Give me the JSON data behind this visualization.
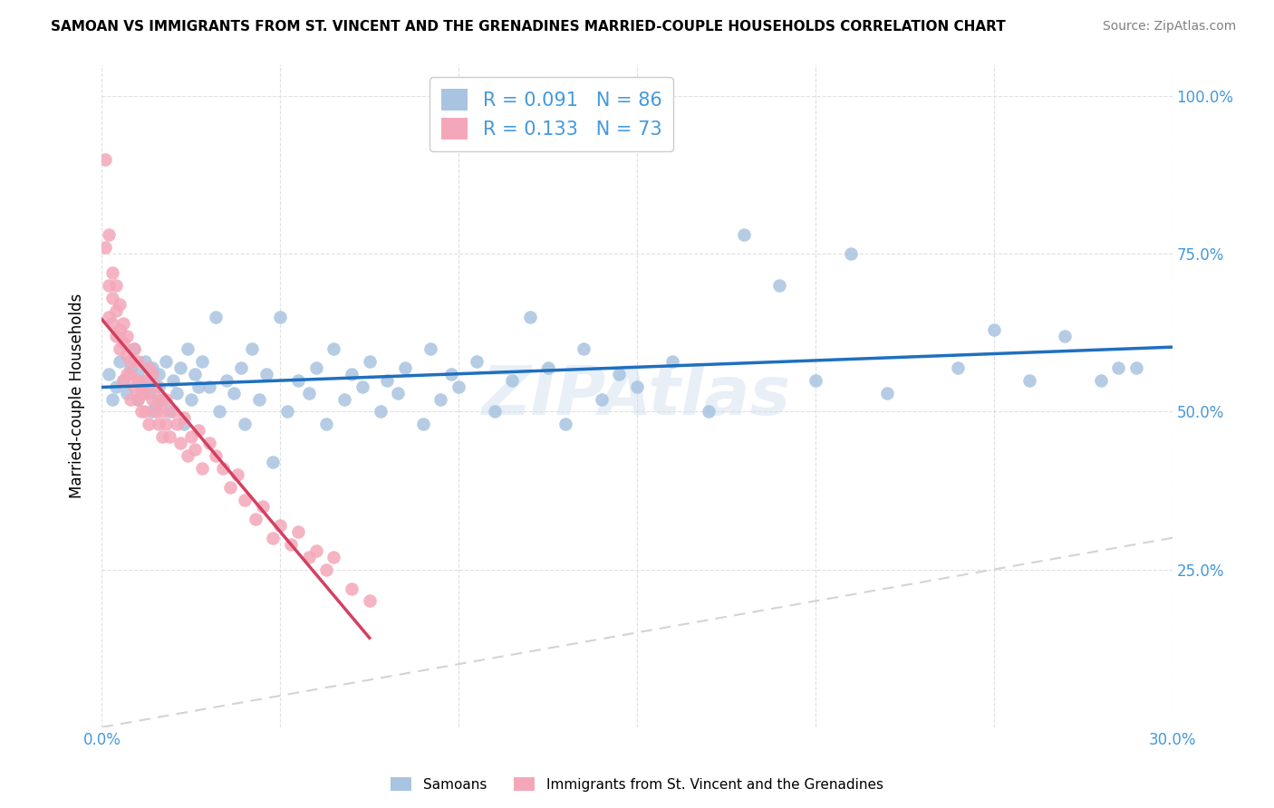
{
  "title": "SAMOAN VS IMMIGRANTS FROM ST. VINCENT AND THE GRENADINES MARRIED-COUPLE HOUSEHOLDS CORRELATION CHART",
  "source": "Source: ZipAtlas.com",
  "ylabel": "Married-couple Households",
  "x_min": 0.0,
  "x_max": 0.3,
  "y_min": 0.0,
  "y_max": 1.05,
  "samoans_R": 0.091,
  "samoans_N": 86,
  "svg_R": 0.133,
  "svg_N": 73,
  "samoans_color": "#a8c4e0",
  "svg_color": "#f4a7b9",
  "samoans_line_color": "#1f6fbf",
  "svg_line_color": "#d44060",
  "diagonal_color": "#cccccc",
  "background_color": "#ffffff",
  "grid_color": "#dddddd",
  "legend_label_samoans": "Samoans",
  "legend_label_svg": "Immigrants from St. Vincent and the Grenadines",
  "watermark": "ZIPAtlas",
  "blue_text_color": "#4499dd",
  "samoans_x": [
    0.002,
    0.003,
    0.004,
    0.005,
    0.006,
    0.007,
    0.008,
    0.009,
    0.01,
    0.01,
    0.011,
    0.012,
    0.013,
    0.013,
    0.014,
    0.014,
    0.015,
    0.016,
    0.016,
    0.017,
    0.018,
    0.019,
    0.02,
    0.021,
    0.022,
    0.023,
    0.024,
    0.025,
    0.026,
    0.027,
    0.028,
    0.03,
    0.032,
    0.033,
    0.035,
    0.037,
    0.039,
    0.04,
    0.042,
    0.044,
    0.046,
    0.048,
    0.05,
    0.052,
    0.055,
    0.058,
    0.06,
    0.063,
    0.065,
    0.068,
    0.07,
    0.073,
    0.075,
    0.078,
    0.08,
    0.083,
    0.085,
    0.09,
    0.092,
    0.095,
    0.098,
    0.1,
    0.105,
    0.11,
    0.115,
    0.12,
    0.125,
    0.13,
    0.135,
    0.14,
    0.145,
    0.15,
    0.16,
    0.17,
    0.18,
    0.19,
    0.2,
    0.21,
    0.22,
    0.24,
    0.25,
    0.26,
    0.27,
    0.28,
    0.285,
    0.29
  ],
  "samoans_y": [
    0.56,
    0.52,
    0.54,
    0.58,
    0.55,
    0.53,
    0.57,
    0.6,
    0.52,
    0.56,
    0.54,
    0.58,
    0.53,
    0.55,
    0.57,
    0.5,
    0.51,
    0.54,
    0.56,
    0.52,
    0.58,
    0.5,
    0.55,
    0.53,
    0.57,
    0.48,
    0.6,
    0.52,
    0.56,
    0.54,
    0.58,
    0.54,
    0.65,
    0.5,
    0.55,
    0.53,
    0.57,
    0.48,
    0.6,
    0.52,
    0.56,
    0.42,
    0.65,
    0.5,
    0.55,
    0.53,
    0.57,
    0.48,
    0.6,
    0.52,
    0.56,
    0.54,
    0.58,
    0.5,
    0.55,
    0.53,
    0.57,
    0.48,
    0.6,
    0.52,
    0.56,
    0.54,
    0.58,
    0.5,
    0.55,
    0.65,
    0.57,
    0.48,
    0.6,
    0.52,
    0.56,
    0.54,
    0.58,
    0.5,
    0.78,
    0.7,
    0.55,
    0.75,
    0.53,
    0.57,
    0.63,
    0.55,
    0.62,
    0.55,
    0.57,
    0.57
  ],
  "svg_x": [
    0.001,
    0.001,
    0.002,
    0.002,
    0.002,
    0.003,
    0.003,
    0.003,
    0.004,
    0.004,
    0.004,
    0.005,
    0.005,
    0.005,
    0.006,
    0.006,
    0.006,
    0.007,
    0.007,
    0.007,
    0.008,
    0.008,
    0.008,
    0.009,
    0.009,
    0.01,
    0.01,
    0.01,
    0.011,
    0.011,
    0.012,
    0.012,
    0.012,
    0.013,
    0.013,
    0.014,
    0.014,
    0.015,
    0.015,
    0.016,
    0.016,
    0.017,
    0.017,
    0.018,
    0.018,
    0.019,
    0.02,
    0.021,
    0.022,
    0.023,
    0.024,
    0.025,
    0.026,
    0.027,
    0.028,
    0.03,
    0.032,
    0.034,
    0.036,
    0.038,
    0.04,
    0.043,
    0.045,
    0.048,
    0.05,
    0.053,
    0.055,
    0.058,
    0.06,
    0.063,
    0.065,
    0.07,
    0.075
  ],
  "svg_y": [
    0.9,
    0.76,
    0.78,
    0.7,
    0.65,
    0.68,
    0.72,
    0.64,
    0.66,
    0.62,
    0.7,
    0.6,
    0.63,
    0.67,
    0.61,
    0.64,
    0.55,
    0.59,
    0.62,
    0.56,
    0.58,
    0.52,
    0.56,
    0.54,
    0.6,
    0.52,
    0.55,
    0.58,
    0.5,
    0.53,
    0.55,
    0.5,
    0.53,
    0.57,
    0.48,
    0.52,
    0.56,
    0.5,
    0.54,
    0.48,
    0.52,
    0.46,
    0.5,
    0.48,
    0.52,
    0.46,
    0.5,
    0.48,
    0.45,
    0.49,
    0.43,
    0.46,
    0.44,
    0.47,
    0.41,
    0.45,
    0.43,
    0.41,
    0.38,
    0.4,
    0.36,
    0.33,
    0.35,
    0.3,
    0.32,
    0.29,
    0.31,
    0.27,
    0.28,
    0.25,
    0.27,
    0.22,
    0.2
  ]
}
